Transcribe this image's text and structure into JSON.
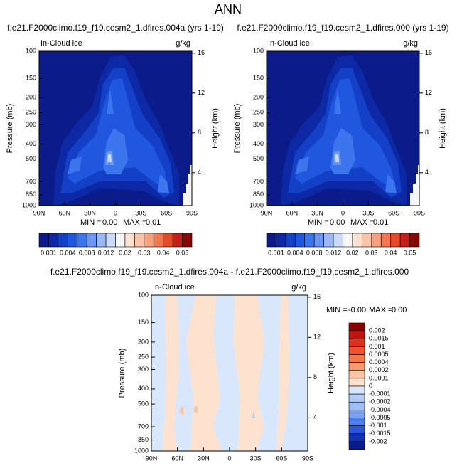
{
  "title": "ANN",
  "chart_data": [
    {
      "type": "contour",
      "title": "f.e21.F2000climo.f19_f19.cesm2_1.dfires.004a (yrs 1-19)",
      "left_label": "In-Cloud ice",
      "right_label": "g/kg",
      "ylabel": "Pressure (mb)",
      "y2label": "Height (km)",
      "ylim": [
        100,
        1000
      ],
      "ylog": true,
      "yticks": [
        100,
        150,
        200,
        250,
        300,
        400,
        500,
        700,
        850,
        1000
      ],
      "y2lim": [
        0.7,
        16.2
      ],
      "y2ticks": [
        4,
        8,
        12,
        16
      ],
      "xlim": [
        90,
        -90
      ],
      "xticks": [
        {
          "value": 90,
          "label": "90N"
        },
        {
          "value": 60,
          "label": "60N"
        },
        {
          "value": 30,
          "label": "30N"
        },
        {
          "value": 0,
          "label": "0"
        },
        {
          "value": -30,
          "label": "30S"
        },
        {
          "value": -60,
          "label": "60S"
        },
        {
          "value": -90,
          "label": "90S"
        }
      ],
      "stats": [
        {
          "name": "MIN =",
          "value": 0,
          "label": "0.00"
        },
        {
          "name": "MAX =",
          "value": 0.01,
          "label": "0.01"
        }
      ],
      "colorbar": {
        "orientation": "horizontal",
        "levels": [
          0.001,
          0.004,
          0.008,
          0.012,
          0.02,
          0.03,
          0.04,
          0.05
        ],
        "colors": [
          "#0b1b8a",
          "#0c28a4",
          "#1340c6",
          "#1f58df",
          "#3c76ef",
          "#6c96f3",
          "#9db9f5",
          "#cadcf9",
          "#f6f6f6",
          "#fde2d0",
          "#fbc4a8",
          "#f7a07e",
          "#f27650",
          "#e4492a",
          "#c41f18",
          "#880808"
        ]
      }
    },
    {
      "type": "contour",
      "title": "f.e21.F2000climo.f19_f19.cesm2_1.dfires.000 (yrs 1-19)",
      "left_label": "In-Cloud ice",
      "right_label": "g/kg",
      "ylabel": "Pressure (mb)",
      "y2label": "Height (km)",
      "ylim": [
        100,
        1000
      ],
      "ylog": true,
      "yticks": [
        100,
        150,
        200,
        250,
        300,
        400,
        500,
        700,
        850,
        1000
      ],
      "y2lim": [
        0.7,
        16.2
      ],
      "y2ticks": [
        4,
        8,
        12,
        16
      ],
      "xlim": [
        90,
        -90
      ],
      "xticks": [
        {
          "value": 90,
          "label": "90N"
        },
        {
          "value": 60,
          "label": "60N"
        },
        {
          "value": 30,
          "label": "30N"
        },
        {
          "value": 0,
          "label": "0"
        },
        {
          "value": -30,
          "label": "30S"
        },
        {
          "value": -60,
          "label": "60S"
        },
        {
          "value": -90,
          "label": "90S"
        }
      ],
      "stats": [
        {
          "name": "MIN =",
          "value": 0,
          "label": "0.00"
        },
        {
          "name": "MAX =",
          "value": 0.01,
          "label": "0.01"
        }
      ],
      "colorbar": {
        "orientation": "horizontal",
        "levels": [
          0.001,
          0.004,
          0.008,
          0.012,
          0.02,
          0.03,
          0.04,
          0.05
        ],
        "colors": [
          "#0b1b8a",
          "#0c28a4",
          "#1340c6",
          "#1f58df",
          "#3c76ef",
          "#6c96f3",
          "#9db9f5",
          "#cadcf9",
          "#f6f6f6",
          "#fde2d0",
          "#fbc4a8",
          "#f7a07e",
          "#f27650",
          "#e4492a",
          "#c41f18",
          "#880808"
        ]
      }
    },
    {
      "type": "contour",
      "title": "f.e21.F2000climo.f19_f19.cesm2_1.dfires.004a - f.e21.F2000climo.f19_f19.cesm2_1.dfires.000",
      "left_label": "In-Cloud ice",
      "right_label": "g/kg",
      "ylabel": "Pressure (mb)",
      "y2label": "Height (km)",
      "ylim": [
        100,
        1000
      ],
      "ylog": true,
      "yticks": [
        100,
        150,
        200,
        250,
        300,
        400,
        500,
        700,
        850,
        1000
      ],
      "y2lim": [
        0.7,
        16.2
      ],
      "y2ticks": [
        4,
        8,
        12,
        16
      ],
      "xlim": [
        90,
        -90
      ],
      "xticks": [
        {
          "value": 90,
          "label": "90N"
        },
        {
          "value": 60,
          "label": "60N"
        },
        {
          "value": 30,
          "label": "30N"
        },
        {
          "value": 0,
          "label": "0"
        },
        {
          "value": -30,
          "label": "30S"
        },
        {
          "value": -60,
          "label": "60S"
        },
        {
          "value": -90,
          "label": "90S"
        }
      ],
      "stats": [
        {
          "name": "MIN =",
          "value": 0,
          "label": "-0.00"
        },
        {
          "name": "MAX =",
          "value": 0,
          "label": "0.00"
        }
      ],
      "colorbar": {
        "orientation": "vertical",
        "levels": [
          0.002,
          0.0015,
          0.001,
          0.0005,
          0.0004,
          0.0002,
          0.0001,
          0,
          -0.0001,
          -0.0002,
          -0.0004,
          -0.0005,
          -0.001,
          -0.0015,
          -0.002
        ],
        "colors": [
          "#8b0000",
          "#c0140e",
          "#e0321a",
          "#f0522a",
          "#f67845",
          "#f89a68",
          "#fbc6a4",
          "#fde3cf",
          "#d8e7fb",
          "#b4cdf6",
          "#9dbef5",
          "#7aa2f2",
          "#4d7eee",
          "#2a56dd",
          "#1232b8",
          "#0a1a90"
        ]
      }
    }
  ]
}
